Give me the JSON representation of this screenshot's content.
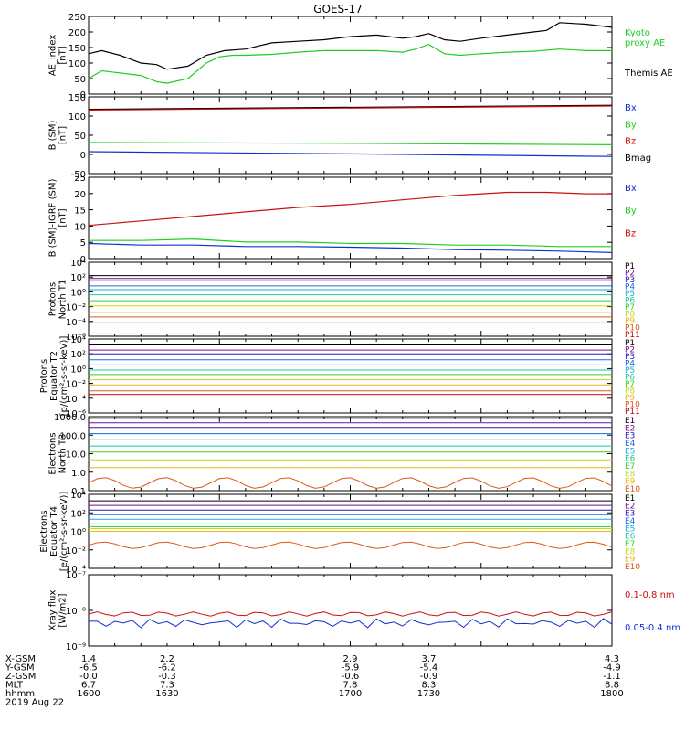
{
  "title": "GOES-17",
  "colors": {
    "black": "#000000",
    "green": "#22cc22",
    "blue": "#1030d0",
    "red": "#cc1010",
    "p": [
      "#000000",
      "#7a0f8a",
      "#2a1aaa",
      "#1a6ad8",
      "#1aaad8",
      "#1ac8a0",
      "#3acc2a",
      "#c8d81a",
      "#e8b81a",
      "#d85a1a",
      "#b80a0a"
    ]
  },
  "chart_data": [
    {
      "type": "line",
      "ylabel": [
        "AE_index",
        "[nT]"
      ],
      "yticks": [
        "0",
        "50",
        "100",
        "150",
        "200",
        "250"
      ],
      "ylim": [
        0,
        250
      ],
      "legend": [
        {
          "label": "Kyoto",
          "color": "green"
        },
        {
          "label": "proxy AE",
          "color": "green"
        },
        {
          "label": "Themis AE",
          "color": "black"
        }
      ],
      "series": [
        {
          "name": "Themis AE",
          "color": "black",
          "x": [
            1600,
            1605,
            1612,
            1620,
            1626,
            1630,
            1638,
            1645,
            1652,
            1660,
            1670,
            1680,
            1690,
            1700,
            1710,
            1720,
            1725,
            1730,
            1736,
            1742,
            1750,
            1760,
            1770,
            1775,
            1780,
            1790,
            1800
          ],
          "values": [
            130,
            140,
            125,
            100,
            95,
            80,
            90,
            125,
            140,
            145,
            165,
            170,
            175,
            185,
            190,
            180,
            185,
            195,
            175,
            170,
            180,
            190,
            200,
            205,
            230,
            225,
            215
          ]
        },
        {
          "name": "Kyoto proxy AE",
          "color": "green",
          "x": [
            1600,
            1605,
            1610,
            1620,
            1626,
            1630,
            1638,
            1645,
            1650,
            1655,
            1660,
            1670,
            1680,
            1690,
            1700,
            1710,
            1720,
            1725,
            1730,
            1736,
            1742,
            1750,
            1760,
            1770,
            1780,
            1790,
            1800
          ],
          "values": [
            50,
            75,
            70,
            60,
            40,
            35,
            50,
            100,
            120,
            125,
            125,
            128,
            135,
            140,
            140,
            140,
            135,
            145,
            160,
            130,
            125,
            130,
            135,
            138,
            145,
            140,
            140
          ]
        }
      ]
    },
    {
      "type": "line",
      "ylabel": [
        "B (SM)",
        "[nT]"
      ],
      "yticks": [
        "-50",
        "0",
        "50",
        "100",
        "150"
      ],
      "ylim": [
        -60,
        150
      ],
      "legend": [
        {
          "label": "Bx",
          "color": "blue"
        },
        {
          "label": "By",
          "color": "green"
        },
        {
          "label": "Bz",
          "color": "red"
        },
        {
          "label": "Bmag",
          "color": "black"
        }
      ],
      "series": [
        {
          "name": "Bmag",
          "color": "black",
          "x": [
            1600,
            1800
          ],
          "values": [
            116,
            127
          ]
        },
        {
          "name": "Bz",
          "color": "red",
          "x": [
            1600,
            1800
          ],
          "values": [
            114,
            125
          ]
        },
        {
          "name": "By",
          "color": "green",
          "x": [
            1600,
            1700,
            1800
          ],
          "values": [
            25,
            23,
            19
          ]
        },
        {
          "name": "Bx",
          "color": "blue",
          "x": [
            1600,
            1700,
            1800
          ],
          "values": [
            0,
            -6,
            -13
          ]
        }
      ]
    },
    {
      "type": "line",
      "ylabel": [
        "B (SM)-IGRF (SM)",
        "[nT]"
      ],
      "yticks": [
        "0",
        "5",
        "10",
        "15",
        "20",
        "25"
      ],
      "ylim": [
        0,
        27
      ],
      "legend": [
        {
          "label": "Bx",
          "color": "blue"
        },
        {
          "label": "By",
          "color": "green"
        },
        {
          "label": "Bz",
          "color": "red"
        }
      ],
      "series": [
        {
          "name": "Bz",
          "color": "red",
          "x": [
            1600,
            1620,
            1640,
            1660,
            1680,
            1700,
            1720,
            1740,
            1760,
            1775,
            1790,
            1800
          ],
          "values": [
            11,
            12.5,
            14,
            15.5,
            17,
            18,
            19.5,
            21,
            22,
            22,
            21.5,
            21.5
          ]
        },
        {
          "name": "By",
          "color": "green",
          "x": [
            1600,
            1620,
            1640,
            1660,
            1680,
            1700,
            1720,
            1740,
            1760,
            1780,
            1800
          ],
          "values": [
            6,
            6,
            6.5,
            5.5,
            5.5,
            5,
            5,
            4.5,
            4.5,
            4,
            4
          ]
        },
        {
          "name": "Bx",
          "color": "blue",
          "x": [
            1600,
            1620,
            1640,
            1660,
            1680,
            1700,
            1720,
            1740,
            1760,
            1780,
            1800
          ],
          "values": [
            5,
            4.5,
            4.5,
            4,
            4,
            3.8,
            3.5,
            3,
            2.8,
            2.5,
            2
          ]
        }
      ]
    },
    {
      "type": "line",
      "ylabel": [
        "Protons",
        "North T1"
      ],
      "yticks": [
        "10⁻⁶",
        "10⁻⁴",
        "10⁻²",
        "10⁰",
        "10²",
        "10⁴"
      ],
      "ylim": [
        -6,
        4
      ],
      "legend": [
        "P1",
        "P2",
        "P3",
        "P4",
        "P5",
        "P6",
        "P7",
        "P8",
        "P9",
        "P10",
        "P11"
      ],
      "series_log10": [
        2.2,
        1.8,
        1.5,
        0.8,
        0.3,
        -0.4,
        -1.2,
        -1.9,
        -2.8,
        -3.4,
        -4.2
      ]
    },
    {
      "type": "line",
      "ylabel": [
        "Protons",
        "Equator T2",
        "[p/(cm²-s-sr-keV)]"
      ],
      "yticks": [
        "10⁻⁶",
        "10⁻⁴",
        "10⁻²",
        "10⁰",
        "10²",
        "10⁴"
      ],
      "ylim": [
        -6,
        4
      ],
      "legend": [
        "P1",
        "P2",
        "P3",
        "P4",
        "P5",
        "P6",
        "P7",
        "P8",
        "P9",
        "P10",
        "P11"
      ],
      "series_log10": [
        3.2,
        2.5,
        2.0,
        1.2,
        0.5,
        -0.2,
        -0.8,
        -1.5,
        -2.2,
        -3.0,
        -3.5
      ]
    },
    {
      "type": "line",
      "ylabel": [
        "Electrons",
        "North T3"
      ],
      "yticks": [
        "0.1",
        "1.0",
        "10.0",
        "100.0",
        "1000.0"
      ],
      "ylim": [
        -1.2,
        3.6
      ],
      "legend": [
        "E1",
        "E2",
        "E3",
        "E4",
        "E5",
        "E6",
        "E7",
        "E8",
        "E9",
        "E10"
      ],
      "series_log10": [
        3.5,
        3.2,
        2.9,
        2.5,
        2.1,
        1.7,
        1.3,
        0.8,
        0.3,
        -0.7
      ]
    },
    {
      "type": "line",
      "ylabel": [
        "Electrons",
        "Equator T4",
        "[e/(cm²-s-sr-keV)]"
      ],
      "yticks": [
        "10⁻⁴",
        "10⁻²",
        "10⁰",
        "10²",
        "10⁴"
      ],
      "ylim": [
        -4,
        4
      ],
      "legend": [
        "E1",
        "E2",
        "E3",
        "E4",
        "E5",
        "E6",
        "E7",
        "E8",
        "E9",
        "E10"
      ],
      "series_log10": [
        3.3,
        2.8,
        2.3,
        1.8,
        1.3,
        0.8,
        0.5,
        0.3,
        0.0,
        -1.5
      ]
    },
    {
      "type": "line",
      "ylabel": [
        "Xray flux",
        "[W/m2]"
      ],
      "yticks": [
        "10⁻⁹",
        "10⁻⁸",
        "10⁻⁷"
      ],
      "ylim": [
        -9,
        -7
      ],
      "legend": [
        {
          "label": "0.1-0.8 nm",
          "color": "red"
        },
        {
          "label": "0.05-0.4 nm",
          "color": "blue"
        }
      ],
      "series_log10": [
        -8.1,
        -8.35
      ]
    }
  ],
  "x_axis": {
    "row_labels": [
      "X-GSM",
      "Y-GSM",
      "Z-GSM",
      "MLT",
      "hhmm",
      "2019 Aug 22"
    ],
    "ticks": [
      {
        "x": 1600,
        "values": [
          "1.4",
          "-6.5",
          "-0.0",
          "6.7",
          "1600"
        ]
      },
      {
        "x": 1630,
        "values": [
          "2.2",
          "-6.2",
          "-0.3",
          "7.3",
          "1630"
        ]
      },
      {
        "x": 1700,
        "values": [
          "2.9",
          "-5.9",
          "-0.6",
          "7.8",
          "1700"
        ]
      },
      {
        "x": 1730,
        "values": [
          "3.7",
          "-5.4",
          "-0.9",
          "8.3",
          "1730"
        ]
      },
      {
        "x": 1800,
        "values": [
          "4.3",
          "-4.9",
          "-1.1",
          "8.8",
          "1800"
        ]
      }
    ]
  }
}
